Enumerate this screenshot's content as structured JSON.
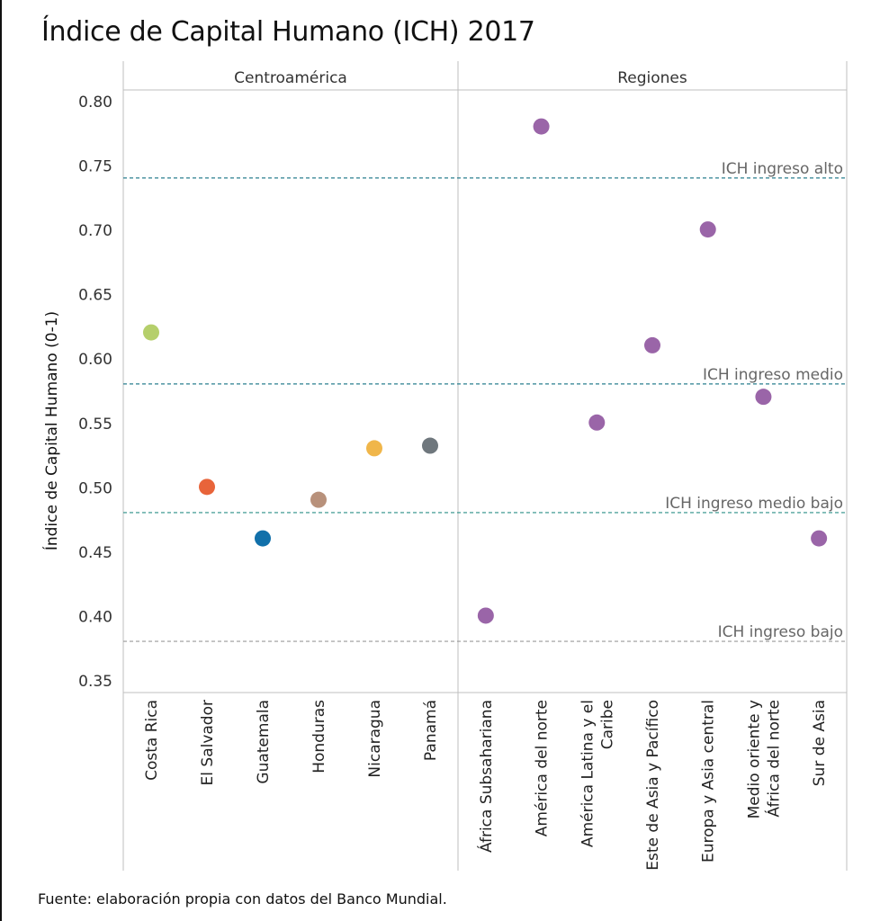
{
  "chart_data": {
    "type": "scatter",
    "title": "Índice de Capital Humano (ICH) 2017",
    "ylabel": "Índice de Capital Humano (0-1)",
    "ylim": [
      0.35,
      0.81
    ],
    "yticks": [
      "0.80",
      "0.75",
      "0.70",
      "0.65",
      "0.60",
      "0.55",
      "0.50",
      "0.45",
      "0.40",
      "0.35"
    ],
    "ytick_values": [
      0.8,
      0.75,
      0.7,
      0.65,
      0.6,
      0.55,
      0.5,
      0.45,
      0.4,
      0.35
    ],
    "grid": false,
    "panels": [
      {
        "name": "Centroamérica",
        "categories": [
          "Costa Rica",
          "El Salvador",
          "Guatemala",
          "Honduras",
          "Nicaragua",
          "Panamá"
        ],
        "values": [
          0.62,
          0.5,
          0.46,
          0.49,
          0.53,
          0.532
        ],
        "colors": [
          "#b5cf6b",
          "#e8643a",
          "#1170aa",
          "#b8917b",
          "#f0b64a",
          "#6f777d"
        ]
      },
      {
        "name": "Regiones",
        "categories": [
          "África Subsahariana",
          "América del norte",
          "América Latina y el Caribe",
          "Este de Asia y Pacífico",
          "Europa y Asia central",
          "Medio oriente y África del norte",
          "Sur de Asia"
        ],
        "category_lines": [
          [
            "África Subsahariana"
          ],
          [
            "América del norte"
          ],
          [
            "América Latina y el",
            "Caribe"
          ],
          [
            "Este de Asia y Pacífico"
          ],
          [
            "Europa y Asia central"
          ],
          [
            "Medio oriente y",
            "África del norte"
          ],
          [
            "Sur de Asia"
          ]
        ],
        "values": [
          0.4,
          0.78,
          0.55,
          0.61,
          0.7,
          0.57,
          0.46
        ],
        "colors": [
          "#9a65a8",
          "#9a65a8",
          "#9a65a8",
          "#9a65a8",
          "#9a65a8",
          "#9a65a8",
          "#9a65a8"
        ]
      }
    ],
    "reference_lines": [
      {
        "label": "ICH ingreso alto",
        "value": 0.74,
        "color": "#2a7f8f"
      },
      {
        "label": "ICH ingreso medio",
        "value": 0.58,
        "color": "#2a7f8f"
      },
      {
        "label": "ICH ingreso medio bajo",
        "value": 0.48,
        "color": "#2a8f87"
      },
      {
        "label": "ICH ingreso bajo",
        "value": 0.38,
        "color": "#9a9a9a"
      }
    ]
  },
  "source": "Fuente: elaboración propia con datos del Banco Mundial."
}
